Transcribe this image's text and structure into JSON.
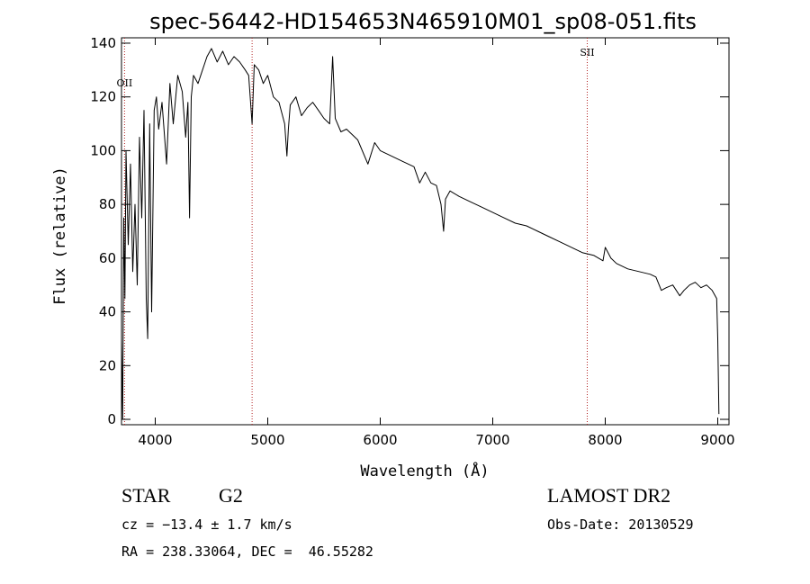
{
  "chart_data": {
    "type": "line",
    "title": "spec-56442-HD154653N465910M01_sp08-051.fits",
    "xlabel": "Wavelength (Å)",
    "ylabel": "Flux (relative)",
    "xlim": [
      3700,
      9100
    ],
    "ylim": [
      -2,
      142
    ],
    "x_ticks": [
      4000,
      5000,
      6000,
      7000,
      8000,
      9000
    ],
    "y_ticks": [
      0,
      20,
      40,
      60,
      80,
      100,
      120,
      140
    ],
    "grid": false,
    "legend": "none",
    "line_color": "#000000",
    "marker_line_color": "#b22222",
    "spectral_lines": [
      {
        "name": "OII",
        "wavelength": 3727
      },
      {
        "name": "",
        "wavelength": 4861
      },
      {
        "name": "SII",
        "wavelength": 7840
      }
    ],
    "series": [
      {
        "x": [
          3700,
          3710,
          3720,
          3730,
          3740,
          3760,
          3780,
          3800,
          3820,
          3840,
          3860,
          3880,
          3900,
          3920,
          3933,
          3950,
          3968,
          3990,
          4010,
          4030,
          4060,
          4101,
          4130,
          4160,
          4200,
          4240,
          4270,
          4290,
          4305,
          4320,
          4340,
          4380,
          4420,
          4460,
          4500,
          4550,
          4600,
          4650,
          4700,
          4750,
          4800,
          4830,
          4861,
          4880,
          4920,
          4960,
          5000,
          5050,
          5100,
          5150,
          5170,
          5183,
          5200,
          5250,
          5300,
          5350,
          5400,
          5450,
          5500,
          5550,
          5577,
          5600,
          5650,
          5700,
          5800,
          5890,
          5950,
          6000,
          6100,
          6200,
          6300,
          6350,
          6400,
          6450,
          6500,
          6540,
          6563,
          6580,
          6620,
          6700,
          6800,
          6900,
          7000,
          7100,
          7200,
          7300,
          7400,
          7500,
          7600,
          7700,
          7800,
          7900,
          7980,
          8000,
          8050,
          8100,
          8200,
          8300,
          8400,
          8450,
          8498,
          8542,
          8600,
          8662,
          8700,
          8750,
          8800,
          8850,
          8900,
          8950,
          8990,
          9000,
          9010
        ],
        "y": [
          30,
          0,
          75,
          45,
          100,
          65,
          95,
          55,
          80,
          50,
          105,
          75,
          115,
          45,
          30,
          110,
          40,
          115,
          120,
          108,
          118,
          95,
          125,
          110,
          128,
          122,
          105,
          118,
          75,
          120,
          128,
          125,
          130,
          135,
          138,
          133,
          137,
          132,
          135,
          133,
          130,
          128,
          110,
          132,
          130,
          125,
          128,
          120,
          118,
          110,
          98,
          108,
          117,
          120,
          113,
          116,
          118,
          115,
          112,
          110,
          135,
          112,
          107,
          108,
          104,
          95,
          103,
          100,
          98,
          96,
          94,
          88,
          92,
          88,
          87,
          80,
          70,
          82,
          85,
          83,
          81,
          79,
          77,
          75,
          73,
          72,
          70,
          68,
          66,
          64,
          62,
          61,
          59,
          64,
          60,
          58,
          56,
          55,
          54,
          53,
          48,
          49,
          50,
          46,
          48,
          50,
          51,
          49,
          50,
          48,
          45,
          30,
          2
        ]
      }
    ]
  },
  "info": {
    "object_type": "STAR",
    "subclass": "G2",
    "survey": "LAMOST DR2",
    "cz": "cz = −13.4 ± 1.7 km/s",
    "obs_date": "Obs-Date: 20130529",
    "coords": "RA = 238.33064, DEC =  46.55282"
  }
}
